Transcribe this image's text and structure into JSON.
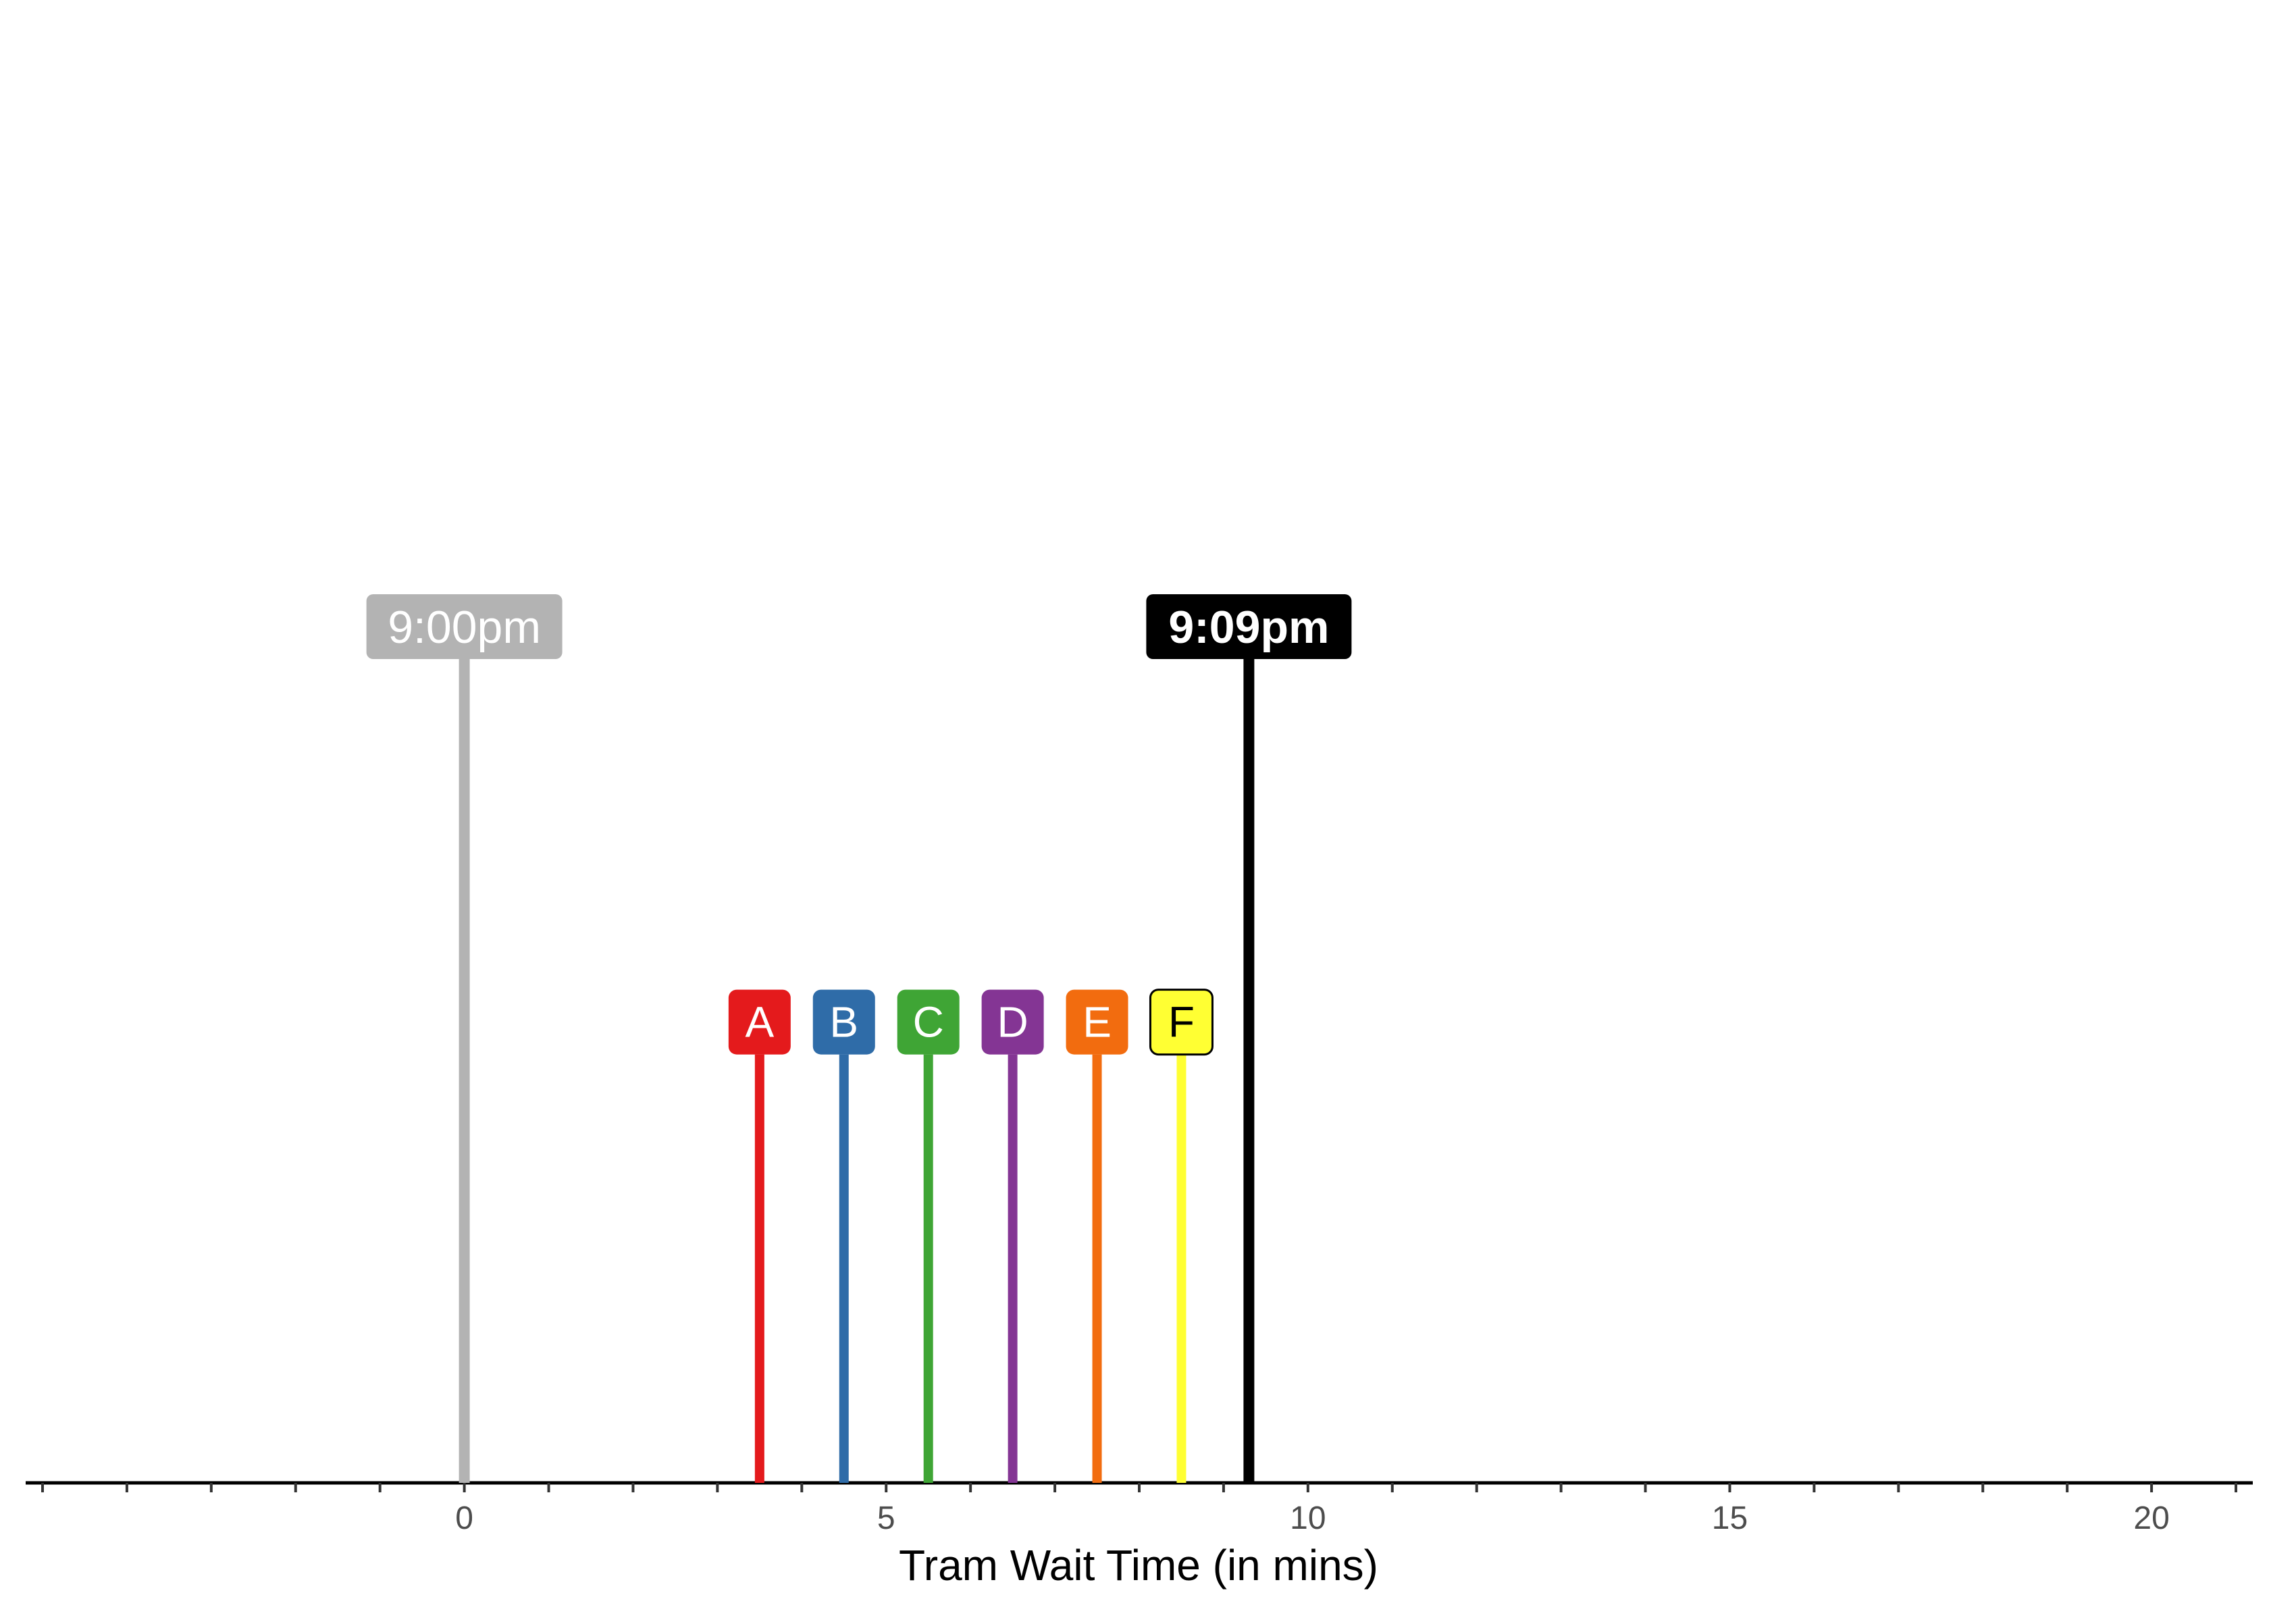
{
  "chart_data": {
    "type": "timeline",
    "xlabel": "Tram Wait Time (in mins)",
    "xlim": [
      -5.2,
      21.2
    ],
    "x_ticks_major": [
      0,
      5,
      10,
      15,
      20
    ],
    "x_tick_labels": [
      "0",
      "5",
      "10",
      "15",
      "20"
    ],
    "x_ticks_minor_step": 1,
    "grid": false,
    "markers": [
      {
        "name": "start",
        "label": "9:00pm",
        "x": 0,
        "color": "#b3b3b3",
        "text_color": "#ffffff",
        "bold": false
      },
      {
        "name": "now",
        "label": "9:09pm",
        "x": 9.3,
        "color": "#000000",
        "text_color": "#ffffff",
        "bold": true
      }
    ],
    "trams": [
      {
        "label": "A",
        "x": 3.5,
        "color": "#e41a1c",
        "text_color": "#ffffff"
      },
      {
        "label": "B",
        "x": 4.5,
        "color": "#2f6ca8",
        "text_color": "#ffffff"
      },
      {
        "label": "C",
        "x": 5.5,
        "color": "#3fa535",
        "text_color": "#ffffff"
      },
      {
        "label": "D",
        "x": 6.5,
        "color": "#843594",
        "text_color": "#ffffff"
      },
      {
        "label": "E",
        "x": 7.5,
        "color": "#f26c0f",
        "text_color": "#ffffff"
      },
      {
        "label": "F",
        "x": 8.5,
        "color": "#ffff33",
        "text_color": "#000000"
      }
    ],
    "marker_height": 1.0,
    "tram_height": 0.52
  }
}
